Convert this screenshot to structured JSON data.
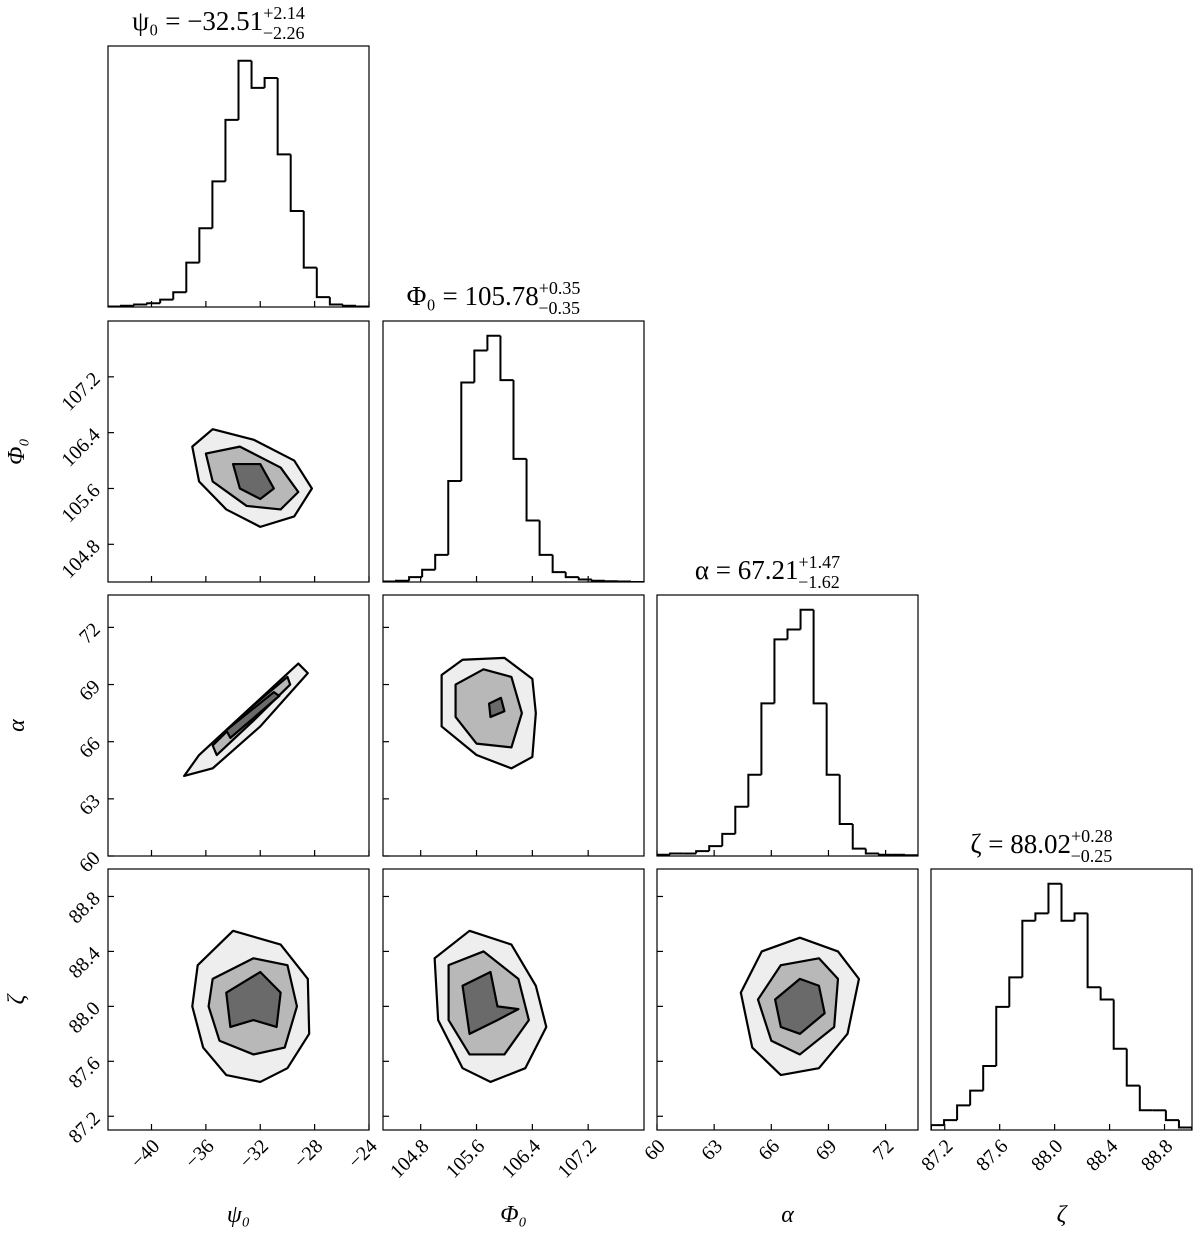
{
  "chart_data": {
    "type": "corner",
    "color": "#000000",
    "parameters": [
      {
        "label": "ψ₀",
        "title": {
          "text": "ψ₀ = −32.51",
          "upper": "+2.14",
          "lower": "−2.26"
        },
        "lim": [
          -43.2,
          -24.0
        ],
        "ticks": [
          {
            "value": -40,
            "label": "−40"
          },
          {
            "value": -36,
            "label": "−36"
          },
          {
            "value": -32,
            "label": "−32"
          },
          {
            "value": -28,
            "label": "−28"
          },
          {
            "value": -24,
            "label": "−24"
          }
        ],
        "bins": [
          -43.2,
          -42.24,
          -41.28,
          -40.32,
          -39.36,
          -38.4,
          -37.44,
          -36.48,
          -35.52,
          -34.56,
          -33.6,
          -32.64,
          -31.68,
          -30.72,
          -29.76,
          -28.8,
          -27.84,
          -26.88,
          -25.92,
          -24.96,
          -24.0
        ],
        "counts": [
          0.2,
          0.5,
          1,
          1.5,
          3,
          6,
          18,
          32,
          51,
          76,
          100,
          89,
          93,
          62,
          39,
          16,
          4,
          1,
          0.5,
          0.2
        ]
      },
      {
        "label": "Φ₀",
        "title": {
          "text": "Φ₀ = 105.78",
          "upper": "+0.35",
          "lower": "−0.35"
        },
        "lim": [
          104.26,
          108.0
        ],
        "ticks": [
          104.8,
          105.6,
          106.4,
          107.2
        ],
        "bins": [
          104.26,
          104.447,
          104.634,
          104.821,
          105.008,
          105.195,
          105.382,
          105.569,
          105.756,
          105.943,
          106.13,
          106.317,
          106.504,
          106.691,
          106.878,
          107.065,
          107.252,
          107.439,
          107.626,
          107.813,
          108.0
        ],
        "counts": [
          0.2,
          0.5,
          2,
          5,
          11,
          41,
          81,
          94,
          100,
          82,
          50,
          25,
          11,
          4,
          2,
          1,
          0.5,
          0.3,
          0.2,
          0
        ]
      },
      {
        "label": "α",
        "title": {
          "text": "α = 67.21",
          "upper": "+1.47",
          "lower": "−1.62"
        },
        "lim": [
          60,
          73.7
        ],
        "ticks": [
          60,
          63,
          66,
          69,
          72
        ],
        "bins": [
          60,
          60.685,
          61.37,
          62.055,
          62.74,
          63.425,
          64.11,
          64.795,
          65.48,
          66.165,
          66.85,
          67.535,
          68.22,
          68.905,
          69.59,
          70.275,
          70.96,
          71.645,
          72.33,
          73.015,
          73.7
        ],
        "counts": [
          0.5,
          1,
          1,
          2,
          4,
          9,
          20,
          33,
          62,
          88,
          92,
          100,
          62,
          33,
          13,
          3,
          1,
          0.5,
          0.5,
          0.3
        ]
      },
      {
        "label": "ζ",
        "title": {
          "text": "ζ = 88.02",
          "upper": "+0.28",
          "lower": "−0.25"
        },
        "lim": [
          87.1,
          89.0
        ],
        "ticks": [
          87.2,
          87.6,
          {
            "value": 88,
            "label": "88.0"
          },
          88.4,
          88.8
        ],
        "bins": [
          87.1,
          87.195,
          87.29,
          87.385,
          87.48,
          87.575,
          87.67,
          87.765,
          87.86,
          87.955,
          88.05,
          88.145,
          88.24,
          88.335,
          88.43,
          88.525,
          88.62,
          88.715,
          88.81,
          88.905,
          89.0
        ],
        "counts": [
          2,
          4,
          10,
          16,
          26,
          50,
          62,
          85,
          88,
          100,
          85,
          88,
          58,
          53,
          33,
          18,
          8,
          8,
          4,
          1
        ]
      }
    ],
    "pairs": [
      {
        "xparam": 0,
        "yparam": 1,
        "contours": [
          {
            "x": [
              -37.0,
              -35.5,
              -32.5,
              -29.5,
              -28.2,
              -29.5,
              -32.0,
              -34.5,
              -36.5
            ],
            "y": [
              106.2,
              106.45,
              106.3,
              106.0,
              105.6,
              105.2,
              105.05,
              105.3,
              105.7
            ]
          },
          {
            "x": [
              -36.0,
              -33.5,
              -30.5,
              -29.2,
              -30.5,
              -33.0,
              -35.5
            ],
            "y": [
              106.1,
              106.2,
              105.9,
              105.55,
              105.3,
              105.35,
              105.7
            ]
          },
          {
            "x": [
              -34.0,
              -32.0,
              -31.0,
              -32.0,
              -33.5
            ],
            "y": [
              105.95,
              105.95,
              105.6,
              105.45,
              105.6
            ]
          }
        ]
      },
      {
        "xparam": 0,
        "yparam": 2,
        "contours": [
          {
            "x": [
              -37.6,
              -36.5,
              -33.0,
              -29.2,
              -28.5,
              -32.0,
              -35.5
            ],
            "y": [
              64.2,
              65.3,
              67.6,
              70.1,
              69.6,
              66.8,
              64.6
            ]
          },
          {
            "x": [
              -35.5,
              -32.5,
              -30.0,
              -29.8,
              -32.5,
              -35.2
            ],
            "y": [
              65.8,
              67.9,
              69.4,
              69.0,
              67.1,
              65.3
            ]
          },
          {
            "x": [
              -34.5,
              -31.0,
              -30.6,
              -34.2
            ],
            "y": [
              66.6,
              68.6,
              68.4,
              66.2
            ]
          }
        ]
      },
      {
        "xparam": 1,
        "yparam": 2,
        "contours": [
          {
            "x": [
              105.1,
              105.4,
              106.0,
              106.4,
              106.45,
              106.4,
              106.1,
              105.6,
              105.1
            ],
            "y": [
              69.5,
              70.3,
              70.4,
              69.3,
              67.5,
              65.2,
              64.6,
              65.3,
              66.8
            ]
          },
          {
            "x": [
              105.3,
              105.7,
              106.1,
              106.25,
              106.1,
              105.6,
              105.3
            ],
            "y": [
              69.0,
              69.8,
              69.4,
              67.5,
              65.7,
              65.9,
              67.3
            ]
          },
          {
            "x": [
              105.78,
              105.95,
              106.0,
              105.8
            ],
            "y": [
              68.0,
              68.3,
              67.6,
              67.3
            ]
          }
        ]
      },
      {
        "xparam": 0,
        "yparam": 3,
        "contours": [
          {
            "x": [
              -36.6,
              -34.0,
              -30.5,
              -28.5,
              -28.4,
              -30.0,
              -32.0,
              -34.5,
              -36.2,
              -37.0
            ],
            "y": [
              88.3,
              88.55,
              88.45,
              88.2,
              87.8,
              87.55,
              87.45,
              87.5,
              87.7,
              88.0
            ]
          },
          {
            "x": [
              -35.5,
              -32.5,
              -30.0,
              -29.3,
              -30.2,
              -32.5,
              -35.0,
              -35.8
            ],
            "y": [
              88.2,
              88.35,
              88.3,
              88.0,
              87.7,
              87.65,
              87.75,
              88.0
            ]
          },
          {
            "x": [
              -34.5,
              -32.0,
              -30.5,
              -30.8,
              -32.5,
              -34.2
            ],
            "y": [
              88.1,
              88.25,
              88.1,
              87.85,
              87.9,
              87.85
            ]
          }
        ]
      },
      {
        "xparam": 1,
        "yparam": 3,
        "contours": [
          {
            "x": [
              105.0,
              105.5,
              106.1,
              106.45,
              106.6,
              106.3,
              105.8,
              105.4,
              105.05
            ],
            "y": [
              88.35,
              88.55,
              88.45,
              88.15,
              87.85,
              87.55,
              87.45,
              87.55,
              87.9
            ]
          },
          {
            "x": [
              105.2,
              105.7,
              106.2,
              106.35,
              106.0,
              105.5,
              105.2
            ],
            "y": [
              88.3,
              88.4,
              88.2,
              87.9,
              87.65,
              87.65,
              87.9
            ]
          },
          {
            "x": [
              105.4,
              105.8,
              105.9,
              106.2,
              105.9,
              105.5
            ],
            "y": [
              88.15,
              88.25,
              88.0,
              87.98,
              87.9,
              87.8
            ]
          }
        ]
      },
      {
        "xparam": 2,
        "yparam": 3,
        "contours": [
          {
            "x": [
              64.4,
              65.5,
              67.5,
              69.5,
              70.6,
              70.0,
              68.5,
              66.5,
              65.0
            ],
            "y": [
              88.1,
              88.4,
              88.5,
              88.4,
              88.2,
              87.8,
              87.55,
              87.5,
              87.7
            ]
          },
          {
            "x": [
              65.3,
              66.5,
              68.5,
              69.5,
              69.3,
              67.5,
              66.0
            ],
            "y": [
              88.05,
              88.3,
              88.35,
              88.2,
              87.85,
              87.65,
              87.75
            ]
          },
          {
            "x": [
              66.2,
              67.5,
              68.5,
              68.8,
              67.5,
              66.5
            ],
            "y": [
              88.05,
              88.2,
              88.15,
              87.95,
              87.8,
              87.85
            ]
          }
        ]
      }
    ]
  }
}
